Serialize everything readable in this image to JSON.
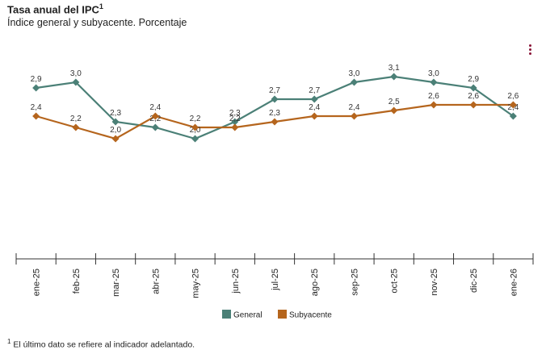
{
  "header": {
    "title": "Tasa anual del IPC",
    "title_sup": "1",
    "subtitle": "Índice general y subyacente. Porcentaje"
  },
  "footnote": {
    "sup": "1",
    "text": "El último dato se refiere al indicador adelantado."
  },
  "menu_icon": "more-vertical-icon",
  "chart_data": {
    "type": "line",
    "categories": [
      "ene-25",
      "feb-25",
      "mar-25",
      "abr-25",
      "may-25",
      "jun-25",
      "jul-25",
      "ago-25",
      "sep-25",
      "oct-25",
      "nov-25",
      "dic-25",
      "ene-26"
    ],
    "series": [
      {
        "name": "General",
        "color": "#4b8077",
        "values": [
          2.9,
          3.0,
          2.3,
          2.2,
          2.0,
          2.3,
          2.7,
          2.7,
          3.0,
          3.1,
          3.0,
          2.9,
          2.4
        ],
        "labels": [
          "2,9",
          "3,0",
          "2,3",
          "2,2",
          "2,0",
          "2,3",
          "2,7",
          "2,7",
          "3,0",
          "3,1",
          "3,0",
          "2,9",
          "2,4"
        ]
      },
      {
        "name": "Subyacente",
        "color": "#b5651d",
        "values": [
          2.4,
          2.2,
          2.0,
          2.4,
          2.2,
          2.2,
          2.3,
          2.4,
          2.4,
          2.5,
          2.6,
          2.6,
          2.6
        ],
        "labels": [
          "2,4",
          "2,2",
          "2,0",
          "2,4",
          "2,2",
          "2,2",
          "2,3",
          "2,4",
          "2,4",
          "2,5",
          "2,6",
          "2,6",
          "2,6"
        ]
      }
    ],
    "legend_position": "bottom-center",
    "grid": false
  }
}
